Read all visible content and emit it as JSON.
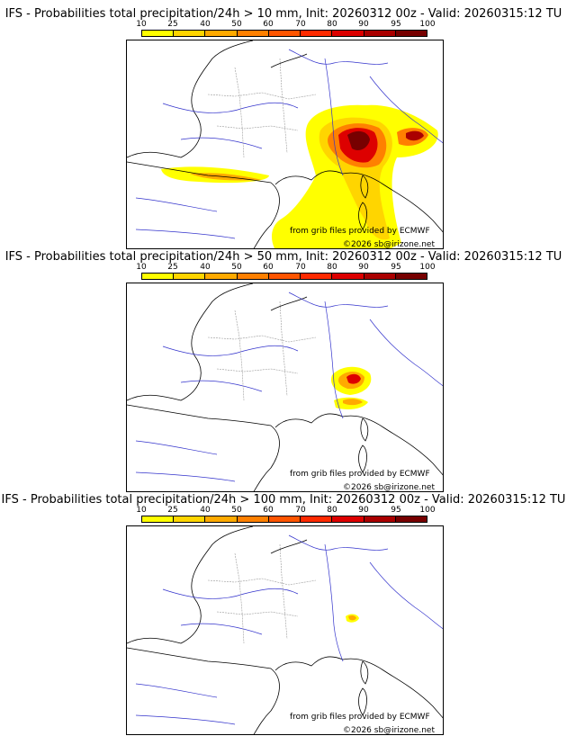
{
  "colorbar": {
    "ticks": [
      "10",
      "25",
      "40",
      "50",
      "60",
      "70",
      "80",
      "90",
      "95",
      "100"
    ],
    "colors": [
      "#ffff00",
      "#ffd500",
      "#ffaa00",
      "#ff8000",
      "#ff5500",
      "#ff2a00",
      "#dd0000",
      "#aa0000",
      "#770000"
    ]
  },
  "panels": [
    {
      "title": "IFS - Probabilities total precipitation/24h > 10 mm, Init: 20260312 00z - Valid: 20260315:12 TU",
      "credit_source": "from grib files provided by ECMWF",
      "credit_copyright": "©2026 sb@irizone.net"
    },
    {
      "title": "IFS - Probabilities total precipitation/24h > 50 mm, Init: 20260312 00z - Valid: 20260315:12 TU",
      "credit_source": "from grib files provided by ECMWF",
      "credit_copyright": "©2026 sb@irizone.net"
    },
    {
      "title": "IFS - Probabilities total precipitation/24h > 100 mm, Init: 20260312 00z - Valid: 20260315:12 TU",
      "credit_source": "from grib files provided by ECMWF",
      "credit_copyright": "©2026 sb@irizone.net"
    }
  ]
}
